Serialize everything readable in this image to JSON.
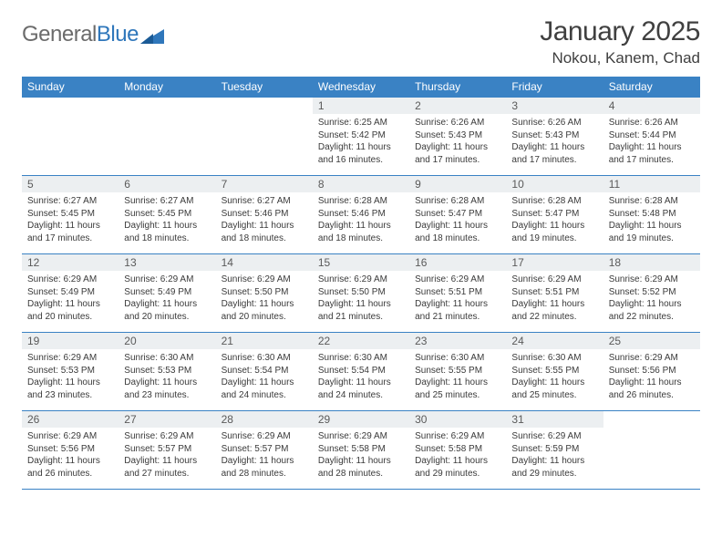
{
  "logo": {
    "word1": "General",
    "word2": "Blue"
  },
  "title": "January 2025",
  "location": "Nokou, Kanem, Chad",
  "colors": {
    "header_bg": "#3a82c4",
    "header_text": "#ffffff",
    "daynum_bg": "#eceff1",
    "daynum_text": "#5a5a5a",
    "body_text": "#3a3a3a",
    "rule": "#3a82c4",
    "title_text": "#404040",
    "logo_gray": "#6b6b6b",
    "logo_blue": "#2f77bb",
    "page_bg": "#ffffff"
  },
  "fonts": {
    "family": "Arial",
    "title_size_pt": 22,
    "location_size_pt": 13,
    "weekday_size_pt": 9,
    "daynum_size_pt": 9,
    "body_size_pt": 7.5
  },
  "weekdays": [
    "Sunday",
    "Monday",
    "Tuesday",
    "Wednesday",
    "Thursday",
    "Friday",
    "Saturday"
  ],
  "labels": {
    "sunrise": "Sunrise:",
    "sunset": "Sunset:",
    "daylight": "Daylight:",
    "hours": "hours",
    "and": "and",
    "minutes": "minutes."
  },
  "first_weekday_index": 3,
  "days": [
    {
      "n": 1,
      "sunrise": "6:25 AM",
      "sunset": "5:42 PM",
      "dl_h": 11,
      "dl_m": 16
    },
    {
      "n": 2,
      "sunrise": "6:26 AM",
      "sunset": "5:43 PM",
      "dl_h": 11,
      "dl_m": 17
    },
    {
      "n": 3,
      "sunrise": "6:26 AM",
      "sunset": "5:43 PM",
      "dl_h": 11,
      "dl_m": 17
    },
    {
      "n": 4,
      "sunrise": "6:26 AM",
      "sunset": "5:44 PM",
      "dl_h": 11,
      "dl_m": 17
    },
    {
      "n": 5,
      "sunrise": "6:27 AM",
      "sunset": "5:45 PM",
      "dl_h": 11,
      "dl_m": 17
    },
    {
      "n": 6,
      "sunrise": "6:27 AM",
      "sunset": "5:45 PM",
      "dl_h": 11,
      "dl_m": 18
    },
    {
      "n": 7,
      "sunrise": "6:27 AM",
      "sunset": "5:46 PM",
      "dl_h": 11,
      "dl_m": 18
    },
    {
      "n": 8,
      "sunrise": "6:28 AM",
      "sunset": "5:46 PM",
      "dl_h": 11,
      "dl_m": 18
    },
    {
      "n": 9,
      "sunrise": "6:28 AM",
      "sunset": "5:47 PM",
      "dl_h": 11,
      "dl_m": 18
    },
    {
      "n": 10,
      "sunrise": "6:28 AM",
      "sunset": "5:47 PM",
      "dl_h": 11,
      "dl_m": 19
    },
    {
      "n": 11,
      "sunrise": "6:28 AM",
      "sunset": "5:48 PM",
      "dl_h": 11,
      "dl_m": 19
    },
    {
      "n": 12,
      "sunrise": "6:29 AM",
      "sunset": "5:49 PM",
      "dl_h": 11,
      "dl_m": 20
    },
    {
      "n": 13,
      "sunrise": "6:29 AM",
      "sunset": "5:49 PM",
      "dl_h": 11,
      "dl_m": 20
    },
    {
      "n": 14,
      "sunrise": "6:29 AM",
      "sunset": "5:50 PM",
      "dl_h": 11,
      "dl_m": 20
    },
    {
      "n": 15,
      "sunrise": "6:29 AM",
      "sunset": "5:50 PM",
      "dl_h": 11,
      "dl_m": 21
    },
    {
      "n": 16,
      "sunrise": "6:29 AM",
      "sunset": "5:51 PM",
      "dl_h": 11,
      "dl_m": 21
    },
    {
      "n": 17,
      "sunrise": "6:29 AM",
      "sunset": "5:51 PM",
      "dl_h": 11,
      "dl_m": 22
    },
    {
      "n": 18,
      "sunrise": "6:29 AM",
      "sunset": "5:52 PM",
      "dl_h": 11,
      "dl_m": 22
    },
    {
      "n": 19,
      "sunrise": "6:29 AM",
      "sunset": "5:53 PM",
      "dl_h": 11,
      "dl_m": 23
    },
    {
      "n": 20,
      "sunrise": "6:30 AM",
      "sunset": "5:53 PM",
      "dl_h": 11,
      "dl_m": 23
    },
    {
      "n": 21,
      "sunrise": "6:30 AM",
      "sunset": "5:54 PM",
      "dl_h": 11,
      "dl_m": 24
    },
    {
      "n": 22,
      "sunrise": "6:30 AM",
      "sunset": "5:54 PM",
      "dl_h": 11,
      "dl_m": 24
    },
    {
      "n": 23,
      "sunrise": "6:30 AM",
      "sunset": "5:55 PM",
      "dl_h": 11,
      "dl_m": 25
    },
    {
      "n": 24,
      "sunrise": "6:30 AM",
      "sunset": "5:55 PM",
      "dl_h": 11,
      "dl_m": 25
    },
    {
      "n": 25,
      "sunrise": "6:29 AM",
      "sunset": "5:56 PM",
      "dl_h": 11,
      "dl_m": 26
    },
    {
      "n": 26,
      "sunrise": "6:29 AM",
      "sunset": "5:56 PM",
      "dl_h": 11,
      "dl_m": 26
    },
    {
      "n": 27,
      "sunrise": "6:29 AM",
      "sunset": "5:57 PM",
      "dl_h": 11,
      "dl_m": 27
    },
    {
      "n": 28,
      "sunrise": "6:29 AM",
      "sunset": "5:57 PM",
      "dl_h": 11,
      "dl_m": 28
    },
    {
      "n": 29,
      "sunrise": "6:29 AM",
      "sunset": "5:58 PM",
      "dl_h": 11,
      "dl_m": 28
    },
    {
      "n": 30,
      "sunrise": "6:29 AM",
      "sunset": "5:58 PM",
      "dl_h": 11,
      "dl_m": 29
    },
    {
      "n": 31,
      "sunrise": "6:29 AM",
      "sunset": "5:59 PM",
      "dl_h": 11,
      "dl_m": 29
    }
  ]
}
